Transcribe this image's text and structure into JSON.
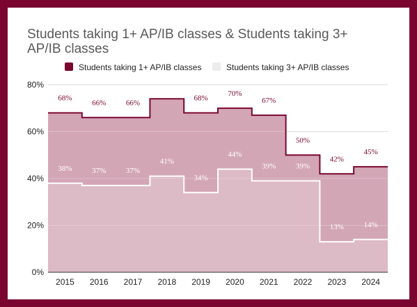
{
  "chart_data": {
    "type": "area",
    "step": true,
    "title_lines": [
      "Students taking 1+ AP/IB classes & Students taking 3+",
      "AP/IB classes"
    ],
    "categories": [
      "2015",
      "2016",
      "2017",
      "2018",
      "2019",
      "2020",
      "2021",
      "2022",
      "2023",
      "2024"
    ],
    "series": [
      {
        "name": "Students taking 1+ AP/IB classes",
        "values": [
          68,
          66,
          66,
          74,
          68,
          70,
          67,
          50,
          42,
          45
        ],
        "labels": [
          "68%",
          "66%",
          "66%",
          "",
          "68%",
          "70%",
          "67%",
          "50%",
          "42%",
          "45%"
        ],
        "fill": "#d3a6b6",
        "line": "#7a0630",
        "swatch": "#7a0630",
        "label_color": "#7a0630"
      },
      {
        "name": "Students taking 3+ AP/IB classes",
        "values": [
          38,
          37,
          37,
          41,
          34,
          44,
          39,
          39,
          13,
          14
        ],
        "labels": [
          "38%",
          "37%",
          "37%",
          "41%",
          "34%",
          "44%",
          "39%",
          "39%",
          "13%",
          "14%"
        ],
        "fill": "#dcbac6",
        "line": "#ffffff",
        "swatch": "#ececec",
        "label_color": "#ffffff"
      }
    ],
    "ylim": [
      0,
      80
    ],
    "yticks": [
      0,
      20,
      40,
      60,
      80
    ],
    "ytick_labels": [
      "0%",
      "20%",
      "40%",
      "60%",
      "80%"
    ],
    "grid": true,
    "legend_position": "top-center"
  }
}
